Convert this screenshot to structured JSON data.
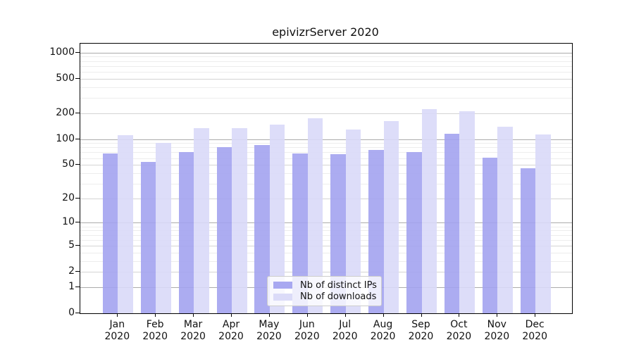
{
  "title": "epivizrServer 2020",
  "colors": {
    "distinct_ips": "#a3a3f0",
    "downloads": "#d9d9f8",
    "grid_minor": "#ededed",
    "grid_major": "#d4d4d4",
    "grid_decade": "#ababab",
    "axis": "#000000",
    "legend_border": "#cccccc"
  },
  "legend": {
    "items": [
      {
        "label": "Nb of distinct IPs",
        "color": "#a3a3f0"
      },
      {
        "label": "Nb of downloads",
        "color": "#d9d9f8"
      }
    ]
  },
  "axes": {
    "y_tick_labels": [
      "1000",
      "500",
      "200",
      "100",
      "50",
      "20",
      "10",
      "5",
      "2",
      "1",
      "0"
    ],
    "y_tick_values": [
      1000,
      500,
      200,
      100,
      50,
      20,
      10,
      5,
      2,
      1,
      0
    ],
    "y_minor_values": [
      3,
      4,
      6,
      7,
      8,
      9,
      30,
      40,
      60,
      70,
      80,
      90,
      300,
      400,
      600,
      700,
      800,
      900
    ],
    "x_months": [
      "Jan",
      "Feb",
      "Mar",
      "Apr",
      "May",
      "Jun",
      "Jul",
      "Aug",
      "Sep",
      "Oct",
      "Nov",
      "Dec"
    ],
    "x_year": "2020"
  },
  "chart_data": {
    "type": "bar",
    "title": "epivizrServer 2020",
    "xlabel": "",
    "ylabel": "",
    "y_scale": "log1p",
    "ylim": [
      0,
      1265
    ],
    "grid": true,
    "legend_position": "lower center",
    "categories": [
      "Jan 2020",
      "Feb 2020",
      "Mar 2020",
      "Apr 2020",
      "May 2020",
      "Jun 2020",
      "Jul 2020",
      "Aug 2020",
      "Sep 2020",
      "Oct 2020",
      "Nov 2020",
      "Dec 2020"
    ],
    "series": [
      {
        "name": "Nb of distinct IPs",
        "color": "#a3a3f0",
        "values": [
          68,
          54,
          71,
          80,
          85,
          68,
          67,
          75,
          70,
          115,
          61,
          46
        ]
      },
      {
        "name": "Nb of downloads",
        "color": "#d9d9f8",
        "values": [
          111,
          90,
          135,
          135,
          147,
          175,
          128,
          163,
          222,
          211,
          140,
          113
        ]
      }
    ]
  }
}
